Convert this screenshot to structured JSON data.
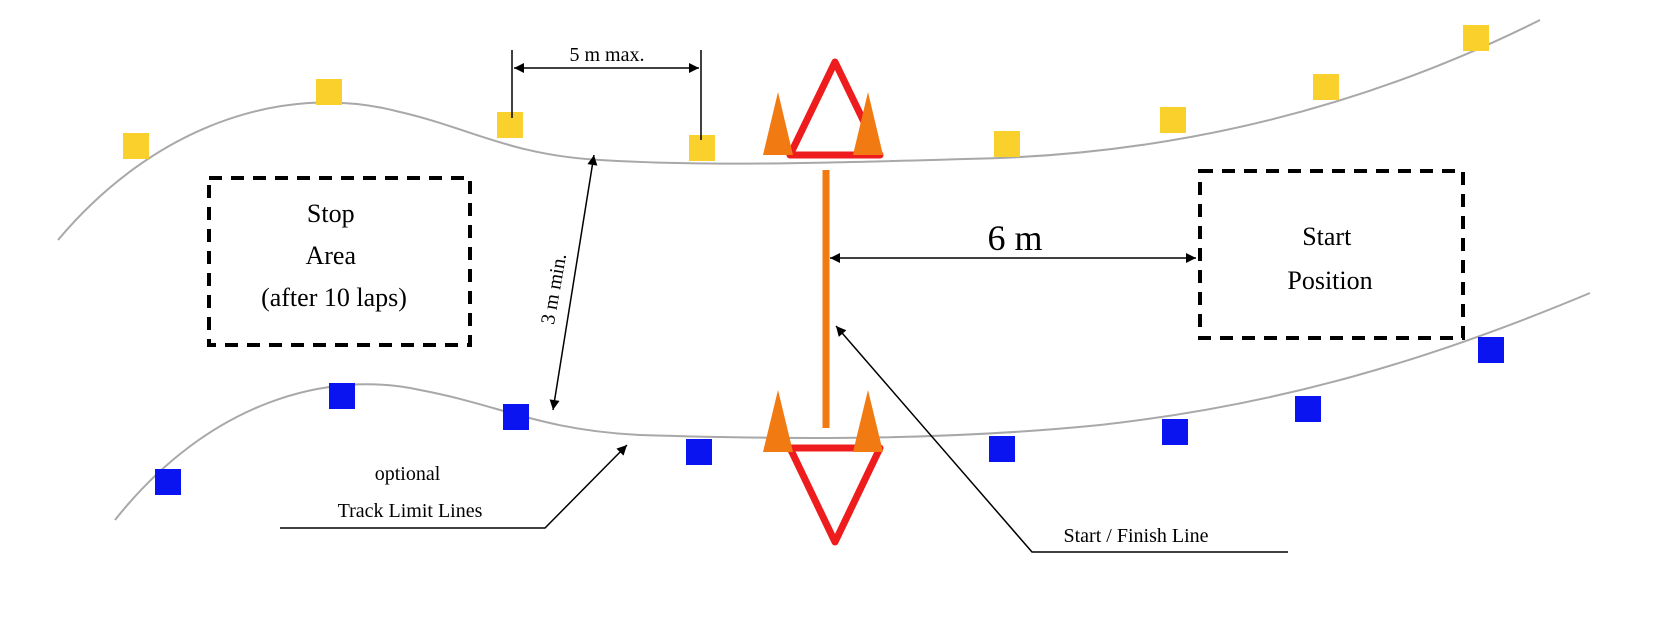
{
  "labels": {
    "stop_area": [
      "Stop",
      "Area",
      "(after 10 laps)"
    ],
    "start_position": [
      "Start",
      "Position"
    ],
    "distance_6m": "6 m",
    "max_5m": "5 m max.",
    "min_3m": "3 m min.",
    "track_limit": [
      "optional",
      "Track Limit Lines"
    ],
    "start_finish": "Start / Finish Line"
  },
  "colors": {
    "yellow_cone": "#f9d02c",
    "blue_cone": "#0a14f0",
    "orange": "#f27a12",
    "red": "#ee1c1c",
    "track_line": "#a8a8a8"
  }
}
